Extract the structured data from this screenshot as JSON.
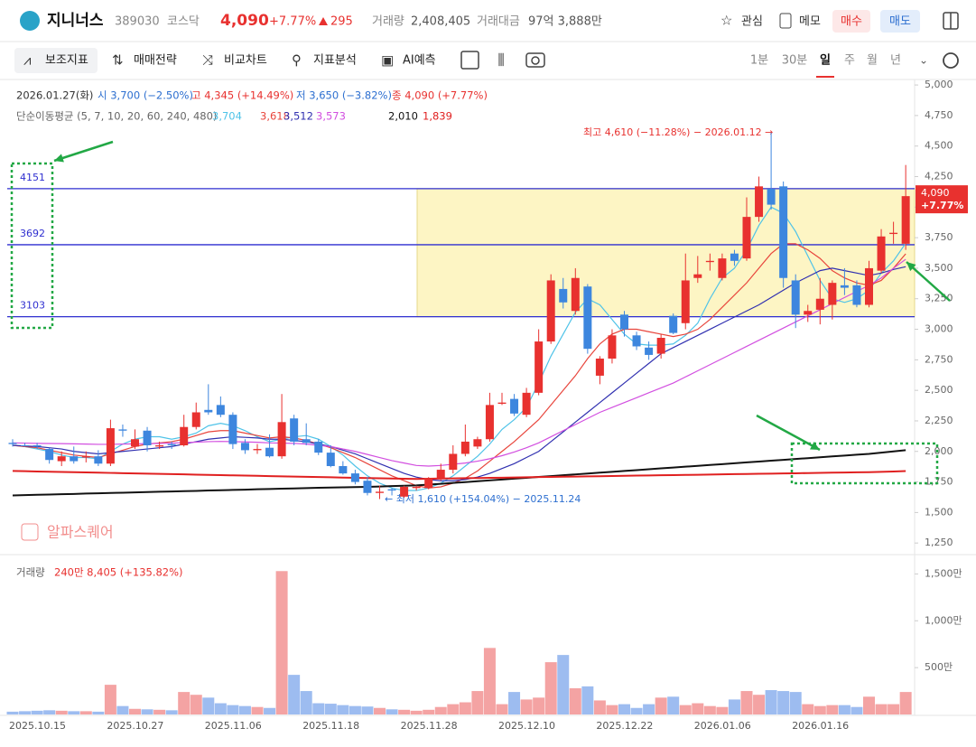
{
  "header": {
    "name": "지니너스",
    "code": "389030",
    "market": "코스닥",
    "price": "4,090",
    "change_pct": "+7.77%",
    "change": "295",
    "volume_label": "거래량",
    "volume": "2,408,405",
    "amount_label": "거래대금",
    "amount": "97억 3,888만",
    "buttons": [
      "관심",
      "메모",
      "매수",
      "매도"
    ]
  },
  "toolbar": {
    "tools": [
      "보조지표",
      "매매전략",
      "비교차트",
      "지표분석",
      "AI예측"
    ],
    "periods": [
      "1분",
      "30분",
      "일",
      "주",
      "월",
      "년"
    ]
  },
  "info": {
    "date": "2026.01.27(화)",
    "open": "시 3,700 (−2.50%)",
    "high": "고 4,345 (+14.49%)",
    "low": "저 3,650 (−3.82%)",
    "close": "종 4,090 (+7.77%)",
    "ma_label": "단순이동평균 (5, 7, 10, 20, 60, 240, 480)"
  },
  "watermark": "알파스퀘어",
  "notes": {
    "high": "최고 4,610 (−11.28%) − 2026.01.12 →",
    "low": "← 최저 1,610 (+154.04%) − 2025.11.24",
    "last_price": "4,090",
    "last_change": "+7.77%"
  },
  "chart_data": [
    {
      "type": "candlestick",
      "up_color": "#e8312f",
      "down_color": "#3d86de",
      "categories": [
        "2025.10.15",
        null,
        null,
        null,
        null,
        null,
        null,
        null,
        "2025.10.27",
        null,
        null,
        null,
        null,
        null,
        null,
        null,
        "2025.11.06",
        null,
        null,
        null,
        null,
        null,
        null,
        null,
        "2025.11.18",
        null,
        null,
        null,
        null,
        null,
        null,
        null,
        "2025.11.28",
        null,
        null,
        null,
        null,
        null,
        null,
        null,
        "2025.12.10",
        null,
        null,
        null,
        null,
        null,
        null,
        null,
        "2025.12.22",
        null,
        null,
        null,
        null,
        null,
        null,
        null,
        "2026.01.06",
        null,
        null,
        null,
        null,
        null,
        null,
        null,
        "2026.01.16",
        null,
        null,
        null,
        null,
        null,
        null,
        null,
        null,
        null
      ],
      "open": [
        2070,
        2050,
        2050,
        2020,
        1920,
        1960,
        1950,
        1960,
        1900,
        2180,
        2040,
        2170,
        2040,
        2060,
        2050,
        2200,
        2340,
        2380,
        2300,
        2070,
        2010,
        2030,
        1960,
        2270,
        2100,
        2080,
        1990,
        1880,
        1820,
        1760,
        1660,
        1690,
        1630,
        1700,
        1700,
        1780,
        1850,
        1980,
        2040,
        2100,
        2390,
        2430,
        2300,
        2480,
        2900,
        3330,
        3150,
        3350,
        2620,
        2760,
        3120,
        2950,
        2850,
        2800,
        3110,
        3050,
        3420,
        3550,
        3420,
        3620,
        3580,
        3920,
        4150,
        4170,
        3400,
        3120,
        3160,
        3200,
        3360,
        3360,
        3200,
        3480,
        3780,
        3700
      ],
      "high": [
        2100,
        2070,
        2070,
        2030,
        2000,
        2040,
        2000,
        2010,
        2260,
        2220,
        2180,
        2200,
        2080,
        2080,
        2300,
        2400,
        2550,
        2450,
        2320,
        2100,
        2060,
        2140,
        2470,
        2300,
        2230,
        2100,
        2050,
        1920,
        1850,
        1790,
        1720,
        1700,
        1720,
        1720,
        1790,
        1900,
        2050,
        2220,
        2120,
        2480,
        2480,
        2470,
        2520,
        3000,
        3450,
        3420,
        3500,
        3370,
        2780,
        3000,
        3150,
        2980,
        2900,
        2960,
        3130,
        3620,
        3600,
        3620,
        3620,
        3650,
        4080,
        4250,
        4610,
        4210,
        3450,
        3200,
        3420,
        3400,
        3500,
        3400,
        3560,
        3820,
        3880,
        4345
      ],
      "low": [
        2040,
        2040,
        2020,
        1900,
        1880,
        1900,
        1910,
        1880,
        1880,
        2120,
        2020,
        2000,
        2020,
        2020,
        2040,
        2180,
        2300,
        2280,
        2020,
        1980,
        1980,
        1950,
        1940,
        2050,
        2050,
        1970,
        1870,
        1810,
        1730,
        1640,
        1610,
        1640,
        1620,
        1680,
        1690,
        1760,
        1820,
        1960,
        2020,
        2080,
        2380,
        2290,
        2280,
        2460,
        2880,
        3170,
        3120,
        2800,
        2550,
        2720,
        2940,
        2830,
        2750,
        2760,
        2960,
        3000,
        3380,
        3480,
        3400,
        3520,
        3560,
        3880,
        3980,
        3340,
        3010,
        3060,
        3040,
        3080,
        3280,
        3180,
        3180,
        3460,
        3700,
        3650
      ],
      "close": [
        2060,
        2045,
        2040,
        1930,
        1960,
        1920,
        1960,
        1900,
        2190,
        2170,
        2100,
        2050,
        2050,
        2050,
        2200,
        2320,
        2320,
        2300,
        2060,
        2010,
        2020,
        1960,
        2240,
        2080,
        2070,
        1990,
        1880,
        1820,
        1750,
        1660,
        1670,
        1680,
        1710,
        1710,
        1780,
        1850,
        1980,
        2080,
        2100,
        2380,
        2400,
        2310,
        2480,
        2900,
        3400,
        3220,
        3420,
        2840,
        2760,
        2950,
        3000,
        2860,
        2790,
        2930,
        2970,
        3400,
        3450,
        3560,
        3580,
        3560,
        3920,
        4170,
        4020,
        3420,
        3120,
        3150,
        3250,
        3380,
        3340,
        3200,
        3500,
        3760,
        3790,
        4090
      ],
      "ylim": [
        1170,
        5045
      ],
      "yticks": [
        {
          "value": 1250,
          "label": "1,250"
        },
        {
          "value": 1500,
          "label": "1,500"
        },
        {
          "value": 1750,
          "label": "1,750"
        },
        {
          "value": 2000,
          "label": "2,000"
        },
        {
          "value": 2250,
          "label": "2,250"
        },
        {
          "value": 2500,
          "label": "2,500"
        },
        {
          "value": 2750,
          "label": "2,750"
        },
        {
          "value": 3000,
          "label": "3,000"
        },
        {
          "value": 3250,
          "label": "3,250"
        },
        {
          "value": 3500,
          "label": "3,500"
        },
        {
          "value": 3750,
          "label": "3,750"
        },
        {
          "value": 4000,
          "label": "4,000"
        },
        {
          "value": 4250,
          "label": "4,250"
        },
        {
          "value": 4500,
          "label": "4,500"
        },
        {
          "value": 4750,
          "label": "4,750"
        },
        {
          "value": 5000,
          "label": "5,000"
        }
      ],
      "levels": [
        4151,
        3692,
        3103
      ],
      "level_color": "#2f2fd0",
      "highlight_color": "#fdf5c4",
      "series": [
        {
          "type": "line",
          "color": "#4fc3e8",
          "value_label": "3,704",
          "values": [
            2050,
            2040,
            2020,
            2000,
            1970,
            1950,
            1950,
            1940,
            2000,
            2060,
            2100,
            2120,
            2120,
            2100,
            2120,
            2150,
            2210,
            2230,
            2210,
            2170,
            2120,
            2080,
            2100,
            2120,
            2130,
            2100,
            2040,
            1970,
            1880,
            1800,
            1740,
            1700,
            1680,
            1680,
            1700,
            1740,
            1800,
            1880,
            1960,
            2060,
            2180,
            2260,
            2360,
            2560,
            2780,
            2960,
            3140,
            3250,
            3200,
            3080,
            2960,
            2880,
            2870,
            2870,
            2880,
            2950,
            3050,
            3250,
            3420,
            3500,
            3650,
            3850,
            4000,
            3950,
            3800,
            3600,
            3400,
            3250,
            3220,
            3250,
            3320,
            3460,
            3560,
            3704
          ]
        },
        {
          "type": "line",
          "color": "#e8453c",
          "value_label": "3,618",
          "values": [
            2050,
            2040,
            2030,
            2010,
            1990,
            1970,
            1960,
            1950,
            1980,
            2010,
            2040,
            2060,
            2070,
            2080,
            2100,
            2130,
            2160,
            2170,
            2170,
            2150,
            2130,
            2110,
            2120,
            2110,
            2090,
            2060,
            2030,
            1990,
            1950,
            1900,
            1850,
            1800,
            1760,
            1720,
            1700,
            1710,
            1740,
            1780,
            1840,
            1920,
            2000,
            2080,
            2170,
            2260,
            2380,
            2500,
            2620,
            2760,
            2880,
            2960,
            3000,
            3000,
            2980,
            2960,
            2940,
            2960,
            3000,
            3080,
            3180,
            3280,
            3380,
            3500,
            3620,
            3700,
            3700,
            3650,
            3580,
            3480,
            3420,
            3380,
            3360,
            3400,
            3500,
            3618
          ]
        },
        {
          "type": "line",
          "color": "#3030b0",
          "value_label": "3,512",
          "values": [
            2050,
            2045,
            2040,
            2030,
            2020,
            2000,
            1990,
            1980,
            1990,
            2000,
            2010,
            2020,
            2030,
            2040,
            2060,
            2080,
            2100,
            2110,
            2120,
            2115,
            2110,
            2100,
            2100,
            2090,
            2080,
            2060,
            2040,
            2010,
            1980,
            1940,
            1900,
            1860,
            1820,
            1790,
            1770,
            1760,
            1760,
            1770,
            1790,
            1820,
            1860,
            1900,
            1950,
            2000,
            2080,
            2160,
            2240,
            2320,
            2400,
            2480,
            2560,
            2640,
            2720,
            2800,
            2850,
            2900,
            2950,
            3000,
            3050,
            3100,
            3150,
            3200,
            3260,
            3320,
            3380,
            3430,
            3480,
            3500,
            3480,
            3460,
            3440,
            3460,
            3490,
            3512
          ]
        },
        {
          "type": "line",
          "color": "#d24fe0",
          "value_label": "3,573",
          "values": [
            2070,
            2068,
            2066,
            2065,
            2064,
            2062,
            2060,
            2058,
            2058,
            2060,
            2062,
            2064,
            2066,
            2068,
            2072,
            2076,
            2080,
            2082,
            2080,
            2078,
            2075,
            2070,
            2068,
            2066,
            2060,
            2050,
            2040,
            2020,
            2000,
            1975,
            1950,
            1925,
            1905,
            1885,
            1880,
            1885,
            1895,
            1905,
            1920,
            1940,
            1965,
            1995,
            2030,
            2070,
            2120,
            2170,
            2220,
            2270,
            2320,
            2360,
            2400,
            2440,
            2480,
            2520,
            2560,
            2610,
            2660,
            2710,
            2760,
            2810,
            2860,
            2910,
            2960,
            3010,
            3060,
            3110,
            3160,
            3210,
            3260,
            3310,
            3360,
            3420,
            3500,
            3573
          ]
        },
        {
          "type": "line",
          "color": "#111111",
          "value_label": "2,010",
          "values": [
            1640,
            1642,
            1645,
            1647,
            1650,
            1652,
            1655,
            1657,
            1660,
            1662,
            1665,
            1667,
            1670,
            1672,
            1675,
            1677,
            1680,
            1682,
            1685,
            1687,
            1690,
            1692,
            1695,
            1697,
            1700,
            1702,
            1704,
            1706,
            1708,
            1710,
            1713,
            1716,
            1719,
            1722,
            1728,
            1735,
            1742,
            1749,
            1756,
            1763,
            1770,
            1777,
            1784,
            1791,
            1798,
            1805,
            1812,
            1819,
            1826,
            1833,
            1840,
            1847,
            1854,
            1861,
            1868,
            1875,
            1882,
            1889,
            1896,
            1903,
            1910,
            1917,
            1924,
            1931,
            1938,
            1945,
            1952,
            1959,
            1966,
            1973,
            1980,
            1990,
            2000,
            2010
          ]
        },
        {
          "type": "line",
          "color": "#e02020",
          "value_label": "1,839",
          "values": [
            1840,
            1838,
            1836,
            1834,
            1832,
            1830,
            1828,
            1826,
            1824,
            1822,
            1820,
            1818,
            1816,
            1814,
            1812,
            1810,
            1808,
            1806,
            1804,
            1802,
            1800,
            1798,
            1796,
            1794,
            1792,
            1790,
            1788,
            1786,
            1784,
            1782,
            1780,
            1778,
            1776,
            1775,
            1776,
            1778,
            1779,
            1781,
            1782,
            1784,
            1785,
            1787,
            1788,
            1790,
            1791,
            1793,
            1794,
            1796,
            1797,
            1799,
            1800,
            1802,
            1803,
            1805,
            1806,
            1808,
            1809,
            1811,
            1812,
            1814,
            1815,
            1817,
            1818,
            1820,
            1821,
            1823,
            1824,
            1826,
            1827,
            1829,
            1830,
            1833,
            1836,
            1839
          ]
        }
      ]
    },
    {
      "type": "bar",
      "title": "거래량",
      "subtitle": "240만 8,405 (+135.82%)",
      "up_color": "#f4a3a3",
      "down_color": "#9dbcf0",
      "values": [
        30,
        35,
        40,
        45,
        40,
        35,
        35,
        30,
        317,
        90,
        60,
        55,
        50,
        45,
        240,
        210,
        180,
        120,
        100,
        90,
        80,
        70,
        1530,
        423,
        250,
        120,
        115,
        100,
        90,
        85,
        70,
        55,
        50,
        40,
        50,
        80,
        110,
        130,
        250,
        710,
        110,
        240,
        160,
        180,
        558,
        635,
        280,
        300,
        150,
        100,
        110,
        70,
        110,
        180,
        190,
        100,
        120,
        90,
        80,
        160,
        250,
        210,
        260,
        250,
        240,
        110,
        90,
        100,
        100,
        80,
        190,
        110,
        110,
        240
      ],
      "ylim": [
        0,
        1600
      ],
      "yticks": [
        {
          "value": 500,
          "label": "500만"
        },
        {
          "value": 1000,
          "label": "1,000만"
        },
        {
          "value": 1500,
          "label": "1,500만"
        }
      ]
    }
  ]
}
